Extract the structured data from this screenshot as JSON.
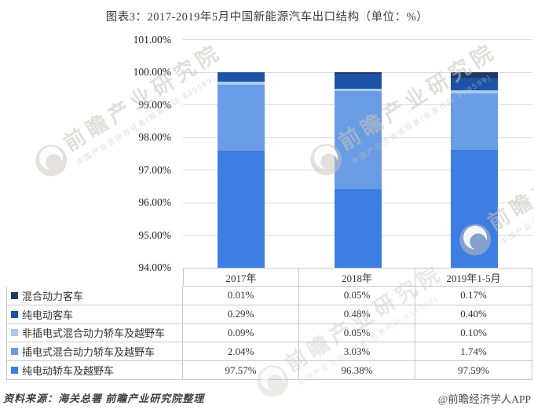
{
  "title": "图表3：2017-2019年5月中国新能源汽车出口结构（单位：%）",
  "chart_data": {
    "type": "bar",
    "stacked": true,
    "unit": "%",
    "categories": [
      "2017年",
      "2018年",
      "2019年1-5月"
    ],
    "series": [
      {
        "name": "混合动力客车",
        "color": "#1F3864",
        "values": [
          0.01,
          0.05,
          0.17
        ]
      },
      {
        "name": "纯电动客车",
        "color": "#1E52A6",
        "values": [
          0.29,
          0.48,
          0.4
        ]
      },
      {
        "name": "非插电式混合动力轿车及越野车",
        "color": "#A9C9F2",
        "values": [
          0.09,
          0.05,
          0.1
        ]
      },
      {
        "name": "插电式混合动力轿车及越野车",
        "color": "#6A9CE5",
        "values": [
          2.04,
          3.03,
          1.74
        ]
      },
      {
        "name": "纯电动轿车及越野车",
        "color": "#3E7DE2",
        "values": [
          97.57,
          96.38,
          97.59
        ]
      }
    ],
    "ylim": [
      94,
      101
    ],
    "ytick_step": 1,
    "ytick_labels": [
      "101.00%",
      "100.00%",
      "99.00%",
      "98.00%",
      "97.00%",
      "96.00%",
      "95.00%",
      "94.00%"
    ],
    "grid": "horizontal",
    "legend_position": "table-left-column"
  },
  "table": {
    "headers": [
      "2017年",
      "2018年",
      "2019年1-5月"
    ],
    "rows": [
      {
        "label": "混合动力客车",
        "values": [
          "0.01%",
          "0.05%",
          "0.17%"
        ]
      },
      {
        "label": "纯电动客车",
        "values": [
          "0.29%",
          "0.48%",
          "0.40%"
        ]
      },
      {
        "label": "非插电式混合动力轿车及越野车",
        "values": [
          "0.09%",
          "0.05%",
          "0.10%"
        ]
      },
      {
        "label": "插电式混合动力轿车及越野车",
        "values": [
          "2.04%",
          "3.03%",
          "1.74%"
        ]
      },
      {
        "label": "纯电动轿车及越野车",
        "values": [
          "97.57%",
          "96.38%",
          "97.59%"
        ]
      }
    ]
  },
  "watermark": {
    "text": "前瞻产业研究院",
    "subtext": "中国产业咨询领导者(股票代码:839599)"
  },
  "footer": {
    "source": "资料来源：海关总署 前瞻产业研究院整理",
    "credit": "@前瞻经济学人APP"
  },
  "colors": {
    "gridline": "#DADADA",
    "table_border": "#C8C8C8",
    "text": "#333333"
  }
}
